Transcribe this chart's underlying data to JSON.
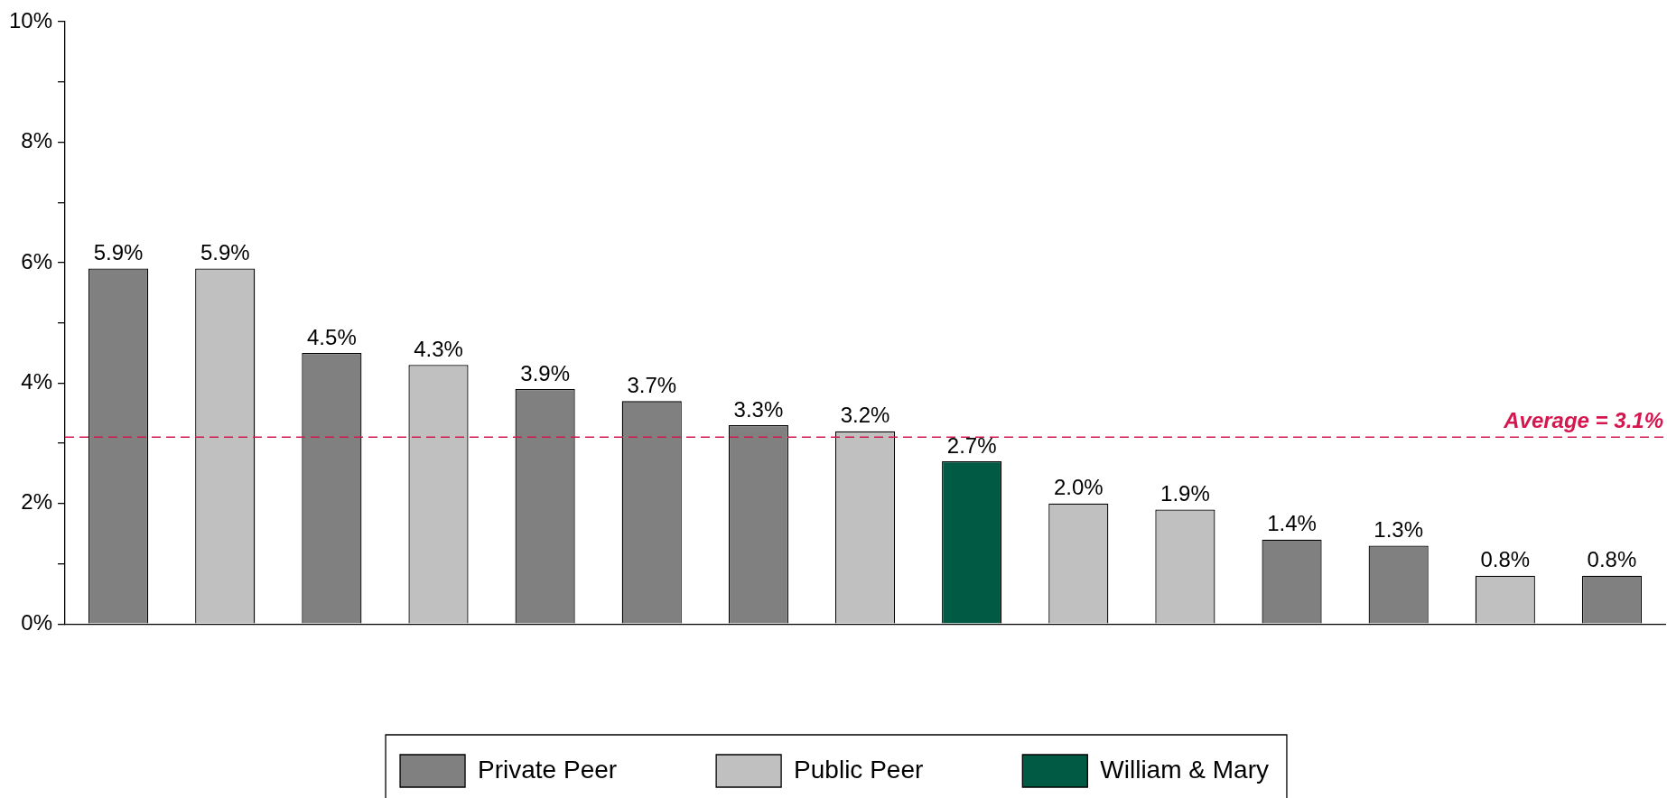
{
  "chart_data": {
    "type": "bar",
    "categories": [
      null,
      null,
      null,
      null,
      null,
      null,
      null,
      null,
      null,
      null,
      null,
      null,
      null,
      null,
      null
    ],
    "series": [
      {
        "name": "Private Peer",
        "color": "#808080",
        "values": [
          5.9,
          null,
          4.5,
          null,
          3.9,
          3.7,
          3.3,
          null,
          null,
          null,
          null,
          1.4,
          1.3,
          null,
          0.8
        ],
        "value_labels": [
          "5.9%",
          null,
          "4.5%",
          null,
          "3.9%",
          "3.7%",
          "3.3%",
          null,
          null,
          null,
          null,
          "1.4%",
          "1.3%",
          null,
          "0.8%"
        ]
      },
      {
        "name": "Public Peer",
        "color": "#c0c0c0",
        "values": [
          null,
          5.9,
          null,
          4.3,
          null,
          null,
          null,
          3.2,
          null,
          2.0,
          1.9,
          null,
          null,
          0.8,
          null
        ],
        "value_labels": [
          null,
          "5.9%",
          null,
          "4.3%",
          null,
          null,
          null,
          "3.2%",
          null,
          "2.0%",
          "1.9%",
          null,
          null,
          "0.8%",
          null
        ]
      },
      {
        "name": "William & Mary",
        "color": "#005a44",
        "values": [
          null,
          null,
          null,
          null,
          null,
          null,
          null,
          null,
          2.7,
          null,
          null,
          null,
          null,
          null,
          null
        ],
        "value_labels": [
          null,
          null,
          null,
          null,
          null,
          null,
          null,
          null,
          "2.7%",
          null,
          null,
          null,
          null,
          null,
          null
        ]
      }
    ],
    "ylim": [
      0,
      10
    ],
    "yticks": [
      {
        "value": 0,
        "label": "0%"
      },
      {
        "value": 1,
        "label": null
      },
      {
        "value": 2,
        "label": "2%"
      },
      {
        "value": 3,
        "label": null
      },
      {
        "value": 4,
        "label": "4%"
      },
      {
        "value": 5,
        "label": null
      },
      {
        "value": 6,
        "label": "6%"
      },
      {
        "value": 7,
        "label": null
      },
      {
        "value": 8,
        "label": "8%"
      },
      {
        "value": 9,
        "label": null
      },
      {
        "value": 10,
        "label": "10%"
      }
    ],
    "ref_lines": [
      {
        "axis": "y",
        "value": 3.1,
        "label": "Average = 3.1%",
        "color": "#d6174f",
        "line_style": "dashed"
      }
    ],
    "grid": false,
    "legend": "bottom"
  }
}
